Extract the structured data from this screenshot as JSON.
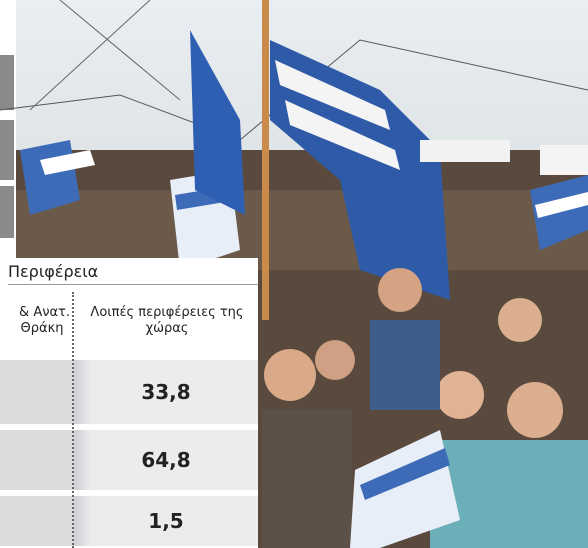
{
  "table": {
    "group_header": "Περιφέρεια",
    "columns": [
      [
        "& Ανατ.",
        "Θράκη"
      ],
      "Λοιπές περιφέρειες της χώρας"
    ],
    "rows": [
      [
        "33,8"
      ],
      [
        "64,8"
      ],
      [
        "1,5"
      ]
    ]
  }
}
